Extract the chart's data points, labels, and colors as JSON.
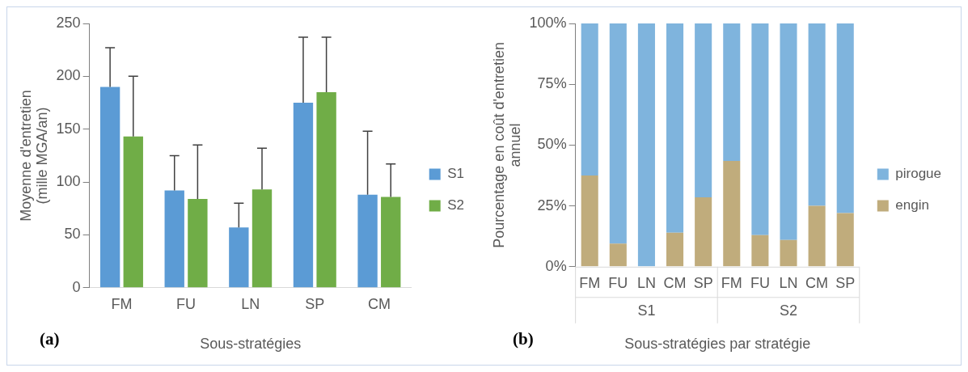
{
  "chart_data": [
    {
      "type": "bar",
      "title": "(a)",
      "xlabel": "Sous-stratégies",
      "ylabel": "Moyenne d'entretien\n(mille MGA/an)",
      "categories": [
        "FM",
        "FU",
        "LN",
        "SP",
        "CM"
      ],
      "series": [
        {
          "name": "S1",
          "color": "#5b9bd5",
          "values": [
            190,
            92,
            57,
            175,
            88
          ],
          "errors": [
            [
              190,
              227
            ],
            [
              92,
              125
            ],
            [
              57,
              80
            ],
            [
              175,
              237
            ],
            [
              88,
              148
            ]
          ]
        },
        {
          "name": "S2",
          "color": "#70ad47",
          "values": [
            143,
            84,
            93,
            185,
            86
          ],
          "errors": [
            [
              143,
              200
            ],
            [
              84,
              135
            ],
            [
              93,
              132
            ],
            [
              185,
              237
            ],
            [
              86,
              117
            ]
          ]
        }
      ],
      "ylim": [
        0,
        250
      ],
      "yticks": [
        0,
        50,
        100,
        150,
        200,
        250
      ],
      "grid": false,
      "legend": "right"
    },
    {
      "type": "bar",
      "title": "(b)",
      "xlabel": "Sous-stratégies par stratégie",
      "ylabel": "Pourcentage en coût d'entretien\nannuel",
      "categories": [
        "FM",
        "FU",
        "LN",
        "CM",
        "SP",
        "FM",
        "FU",
        "LN",
        "CM",
        "SP"
      ],
      "series": [
        {
          "name": "engin",
          "color": "#c0ac7c",
          "values": [
            37.5,
            9.5,
            0,
            14,
            28.5,
            43.5,
            13,
            11,
            25,
            22
          ]
        },
        {
          "name": "pirogue",
          "color": "#7fb4dd",
          "values": [
            62.5,
            90.5,
            100,
            86,
            71.5,
            56.5,
            87,
            89,
            75,
            78
          ]
        }
      ],
      "stacked": true,
      "ylim": [
        0,
        100
      ],
      "yticks": [
        {
          "value": 0,
          "label": "0%"
        },
        {
          "value": 25,
          "label": "25%"
        },
        {
          "value": 50,
          "label": "50%"
        },
        {
          "value": 75,
          "label": "75%"
        },
        {
          "value": 100,
          "label": "100%"
        }
      ],
      "annotations": [
        "S1",
        "S2"
      ],
      "grid": false,
      "legend": "right"
    }
  ]
}
